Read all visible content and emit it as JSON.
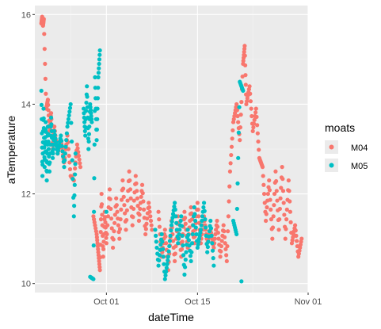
{
  "chart_data": {
    "type": "scatter",
    "xlabel": "dateTime",
    "ylabel": "aTemperature",
    "x_ticks": [
      "Oct 01",
      "Oct 15",
      "Nov 01"
    ],
    "y_ticks": [
      10,
      12,
      14,
      16
    ],
    "xlim": [
      "2023-09-20",
      "2023-11-01"
    ],
    "ylim": [
      9.8,
      16.2
    ],
    "grid": true,
    "legend": {
      "title": "moats",
      "placement": "right"
    },
    "series": [
      {
        "name": "M04",
        "color": "#F8766D",
        "points": [
          [
            "2023-09-21T00:00",
            15.8
          ],
          [
            "2023-09-21T03:00",
            15.95
          ],
          [
            "2023-09-21T06:00",
            15.75
          ],
          [
            "2023-09-21T09:00",
            15.9
          ],
          [
            "2023-09-21T18:00",
            13.9
          ],
          [
            "2023-09-22T00:00",
            14.1
          ],
          [
            "2023-09-22T06:00",
            13.4
          ],
          [
            "2023-09-22T12:00",
            13.8
          ],
          [
            "2023-09-22T18:00",
            13.0
          ],
          [
            "2023-09-23T00:00",
            13.5
          ],
          [
            "2023-09-23T12:00",
            12.9
          ],
          [
            "2023-09-24T00:00",
            13.2
          ],
          [
            "2023-09-24T12:00",
            12.7
          ],
          [
            "2023-09-25T00:00",
            13.3
          ],
          [
            "2023-09-25T12:00",
            12.4
          ],
          [
            "2023-09-26T00:00",
            12.3
          ],
          [
            "2023-09-26T12:00",
            13.1
          ],
          [
            "2023-09-27T00:00",
            12.6
          ],
          [
            "2023-09-29T00:00",
            11.5
          ],
          [
            "2023-09-29T12:00",
            11.1
          ],
          [
            "2023-09-29T18:00",
            10.7
          ],
          [
            "2023-09-30T00:00",
            10.3
          ],
          [
            "2023-09-30T06:00",
            12.0
          ],
          [
            "2023-09-30T12:00",
            10.6
          ],
          [
            "2023-09-30T18:00",
            11.6
          ],
          [
            "2023-10-01T00:00",
            10.9
          ],
          [
            "2023-10-01T12:00",
            12.1
          ],
          [
            "2023-10-02T00:00",
            10.8
          ],
          [
            "2023-10-02T12:00",
            11.9
          ],
          [
            "2023-10-03T00:00",
            11.0
          ],
          [
            "2023-10-03T12:00",
            12.3
          ],
          [
            "2023-10-04T00:00",
            11.2
          ],
          [
            "2023-10-04T12:00",
            12.5
          ],
          [
            "2023-10-05T00:00",
            11.3
          ],
          [
            "2023-10-05T12:00",
            12.4
          ],
          [
            "2023-10-06T00:00",
            11.4
          ],
          [
            "2023-10-06T12:00",
            12.2
          ],
          [
            "2023-10-07T00:00",
            11.1
          ],
          [
            "2023-10-07T12:00",
            11.8
          ],
          [
            "2023-10-08T00:00",
            11.2
          ],
          [
            "2023-10-09T00:00",
            11.6
          ],
          [
            "2023-10-09T12:00",
            10.6
          ],
          [
            "2023-10-10T00:00",
            11.2
          ],
          [
            "2023-10-10T12:00",
            10.3
          ],
          [
            "2023-10-11T00:00",
            11.4
          ],
          [
            "2023-10-11T12:00",
            10.5
          ],
          [
            "2023-10-12T00:00",
            11.5
          ],
          [
            "2023-10-12T12:00",
            10.6
          ],
          [
            "2023-10-13T00:00",
            11.6
          ],
          [
            "2023-10-13T12:00",
            10.8
          ],
          [
            "2023-10-14T00:00",
            11.7
          ],
          [
            "2023-10-14T12:00",
            10.9
          ],
          [
            "2023-10-15T00:00",
            11.8
          ],
          [
            "2023-10-15T12:00",
            10.9
          ],
          [
            "2023-10-16T00:00",
            11.5
          ],
          [
            "2023-10-16T12:00",
            10.9
          ],
          [
            "2023-10-17T00:00",
            11.2
          ],
          [
            "2023-10-17T12:00",
            10.8
          ],
          [
            "2023-10-18T00:00",
            11.4
          ],
          [
            "2023-10-18T12:00",
            10.6
          ],
          [
            "2023-10-19T00:00",
            11.3
          ],
          [
            "2023-10-19T12:00",
            10.5
          ],
          [
            "2023-10-20T00:00",
            12.5
          ],
          [
            "2023-10-20T12:00",
            13.6
          ],
          [
            "2023-10-21T00:00",
            14.0
          ],
          [
            "2023-10-21T12:00",
            13.2
          ],
          [
            "2023-10-22T00:00",
            14.9
          ],
          [
            "2023-10-22T06:00",
            15.3
          ],
          [
            "2023-10-22T12:00",
            14.0
          ],
          [
            "2023-10-23T00:00",
            14.4
          ],
          [
            "2023-10-23T12:00",
            13.4
          ],
          [
            "2023-10-24T00:00",
            13.9
          ],
          [
            "2023-10-24T12:00",
            12.8
          ],
          [
            "2023-10-25T00:00",
            12.6
          ],
          [
            "2023-10-25T12:00",
            11.4
          ],
          [
            "2023-10-26T00:00",
            12.3
          ],
          [
            "2023-10-26T12:00",
            11.0
          ],
          [
            "2023-10-27T00:00",
            12.5
          ],
          [
            "2023-10-27T12:00",
            11.2
          ],
          [
            "2023-10-28T00:00",
            12.6
          ],
          [
            "2023-10-28T12:00",
            11.0
          ],
          [
            "2023-10-29T00:00",
            12.3
          ],
          [
            "2023-10-29T12:00",
            10.9
          ],
          [
            "2023-10-30T00:00",
            11.3
          ],
          [
            "2023-10-30T12:00",
            10.6
          ],
          [
            "2023-10-31T00:00",
            11.0
          ]
        ]
      },
      {
        "name": "M05",
        "color": "#00BFC4",
        "points": [
          [
            "2023-09-21T00:00",
            14.3
          ],
          [
            "2023-09-21T04:00",
            12.4
          ],
          [
            "2023-09-21T08:00",
            13.9
          ],
          [
            "2023-09-21T12:00",
            12.6
          ],
          [
            "2023-09-21T16:00",
            13.6
          ],
          [
            "2023-09-21T20:00",
            12.3
          ],
          [
            "2023-09-22T00:00",
            13.5
          ],
          [
            "2023-09-22T06:00",
            12.5
          ],
          [
            "2023-09-22T12:00",
            13.7
          ],
          [
            "2023-09-22T18:00",
            12.8
          ],
          [
            "2023-09-23T00:00",
            13.4
          ],
          [
            "2023-09-23T12:00",
            12.9
          ],
          [
            "2023-09-24T00:00",
            13.3
          ],
          [
            "2023-09-24T12:00",
            12.6
          ],
          [
            "2023-09-25T00:00",
            13.5
          ],
          [
            "2023-09-25T12:00",
            14.0
          ],
          [
            "2023-09-26T00:00",
            11.5
          ],
          [
            "2023-09-26T06:00",
            12.9
          ],
          [
            "2023-09-27T12:00",
            13.9
          ],
          [
            "2023-09-27T18:00",
            13.3
          ],
          [
            "2023-09-28T00:00",
            14.4
          ],
          [
            "2023-09-28T06:00",
            13.0
          ],
          [
            "2023-09-28T12:00",
            14.0
          ],
          [
            "2023-09-28T18:00",
            13.6
          ],
          [
            "2023-09-28T12:00",
            10.15
          ],
          [
            "2023-09-29T00:00",
            10.1
          ],
          [
            "2023-09-29T06:00",
            14.6
          ],
          [
            "2023-09-29T12:00",
            13.2
          ],
          [
            "2023-09-29T18:00",
            14.6
          ],
          [
            "2023-09-30T00:00",
            15.2
          ],
          [
            "2023-10-01T00:00",
            11.6
          ],
          [
            "2023-10-08T12:00",
            11.2
          ],
          [
            "2023-10-09T00:00",
            10.4
          ],
          [
            "2023-10-09T12:00",
            11.1
          ],
          [
            "2023-10-10T00:00",
            10.1
          ],
          [
            "2023-10-10T12:00",
            10.6
          ],
          [
            "2023-10-11T00:00",
            11.3
          ],
          [
            "2023-10-11T12:00",
            11.8
          ],
          [
            "2023-10-12T00:00",
            10.9
          ],
          [
            "2023-10-12T12:00",
            11.5
          ],
          [
            "2023-10-13T00:00",
            10.2
          ],
          [
            "2023-10-13T12:00",
            11.2
          ],
          [
            "2023-10-14T00:00",
            10.5
          ],
          [
            "2023-10-14T12:00",
            11.7
          ],
          [
            "2023-10-15T00:00",
            10.8
          ],
          [
            "2023-10-15T12:00",
            11.2
          ],
          [
            "2023-10-16T00:00",
            11.8
          ],
          [
            "2023-10-16T12:00",
            10.7
          ],
          [
            "2023-10-17T00:00",
            11.4
          ],
          [
            "2023-10-17T12:00",
            10.4
          ],
          [
            "2023-10-20T12:00",
            11.4
          ],
          [
            "2023-10-21T00:00",
            11.1
          ],
          [
            "2023-10-21T12:00",
            14.5
          ],
          [
            "2023-10-22T00:00",
            14.3
          ],
          [
            "2023-10-21T18:00",
            10.05
          ]
        ]
      }
    ]
  }
}
